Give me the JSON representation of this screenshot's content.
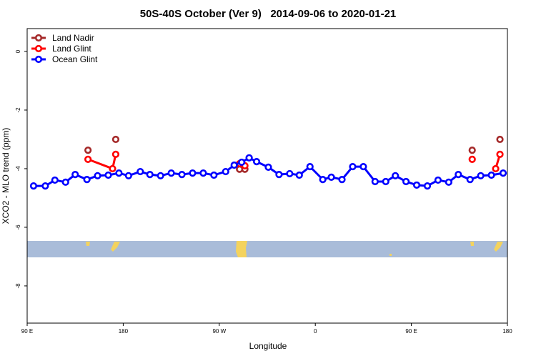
{
  "chart_data": {
    "type": "line",
    "title": "50S-40S October (Ver 9)   2014-09-06 to 2020-01-21",
    "xlabel": "Longitude",
    "ylabel": "XCO2 - MLO trend (ppm)",
    "xlim": [
      90,
      540
    ],
    "ylim": [
      0.78,
      -9.27
    ],
    "xticks": [
      {
        "value": 90,
        "label": "90 E"
      },
      {
        "value": 180,
        "label": "180"
      },
      {
        "value": 270,
        "label": "90 W"
      },
      {
        "value": 360,
        "label": "0"
      },
      {
        "value": 450,
        "label": "90 E"
      },
      {
        "value": 540,
        "label": "180"
      }
    ],
    "yticks": [
      0,
      -2,
      -4,
      -6,
      -8
    ],
    "legend": "top-left",
    "series": [
      {
        "name": "Land Nadir",
        "color": "#a52a2a",
        "x": [
          147,
          null,
          173,
          null,
          289,
          null,
          294,
          null,
          507,
          null,
          533
        ],
        "values": [
          -3.37,
          null,
          -3.0,
          null,
          -4.02,
          null,
          -4.02,
          null,
          -3.37,
          null,
          -3.0
        ]
      },
      {
        "name": "Land Glint",
        "color": "#ff0000",
        "x": [
          147,
          170,
          173,
          null,
          289,
          294,
          null,
          507,
          null,
          529,
          533
        ],
        "values": [
          -3.68,
          -4.0,
          -3.51,
          null,
          -3.83,
          -3.9,
          null,
          -3.68,
          null,
          -4.0,
          -3.51
        ]
      },
      {
        "name": "Ocean Glint",
        "color": "#0000ff",
        "x": [
          96,
          107,
          116,
          126,
          135,
          146,
          156,
          166,
          176,
          185,
          196,
          205,
          215,
          225,
          235,
          245,
          255,
          265,
          276,
          284,
          291,
          298,
          305,
          316,
          326,
          336,
          345,
          355,
          367,
          375,
          385,
          395,
          405,
          416,
          426,
          435,
          445,
          455,
          465,
          475,
          485,
          494,
          505,
          515,
          525,
          536
        ],
        "values": [
          -4.59,
          -4.59,
          -4.39,
          -4.46,
          -4.2,
          -4.37,
          -4.24,
          -4.22,
          -4.15,
          -4.24,
          -4.1,
          -4.2,
          -4.24,
          -4.15,
          -4.2,
          -4.15,
          -4.15,
          -4.22,
          -4.1,
          -3.88,
          -3.78,
          -3.63,
          -3.76,
          -3.95,
          -4.2,
          -4.17,
          -4.22,
          -3.93,
          -4.37,
          -4.29,
          -4.37,
          -3.93,
          -3.93,
          -4.44,
          -4.44,
          -4.24,
          -4.44,
          -4.56,
          -4.59,
          -4.39,
          -4.46,
          -4.2,
          -4.37,
          -4.24,
          -4.22,
          -4.15
        ]
      }
    ]
  }
}
